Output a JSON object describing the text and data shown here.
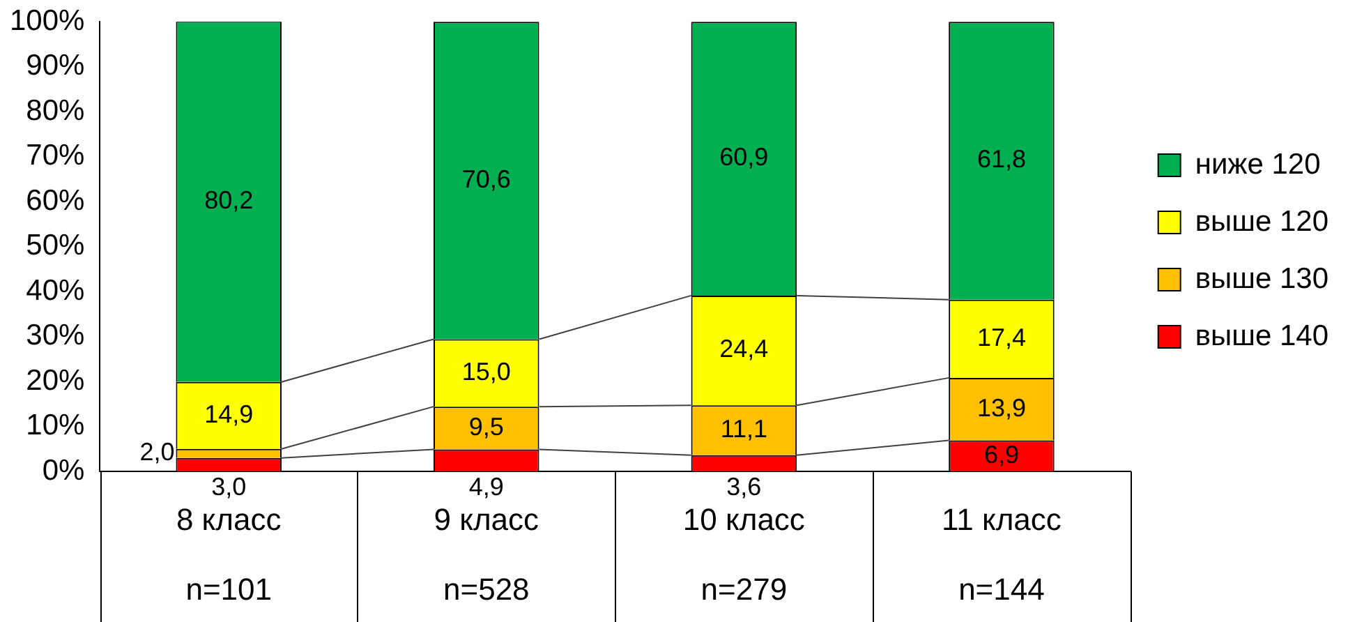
{
  "chart_data": {
    "type": "bar",
    "stacked": true,
    "categories": [
      "8 класс\nn=101",
      "9 класс\nn=528",
      "10 класс\nn=279",
      "11 класс\nn=144"
    ],
    "series": [
      {
        "name": "выше 140",
        "color": "#ff0000",
        "values": [
          3.0,
          4.9,
          3.6,
          6.9
        ],
        "value_labels": [
          "3,0",
          "4,9",
          "3,6",
          "6,9"
        ]
      },
      {
        "name": "выше 130",
        "color": "#ffc000",
        "values": [
          2.0,
          9.5,
          11.1,
          13.9
        ],
        "value_labels": [
          "2,0",
          "9,5",
          "11,1",
          "13,9"
        ]
      },
      {
        "name": "выше 120",
        "color": "#ffff00",
        "values": [
          14.9,
          15.0,
          24.4,
          17.4
        ],
        "value_labels": [
          "14,9",
          "15,0",
          "24,4",
          "17,4"
        ]
      },
      {
        "name": "ниже 120",
        "color": "#00b050",
        "values": [
          80.2,
          70.6,
          60.9,
          61.8
        ],
        "value_labels": [
          "80,2",
          "70,6",
          "60,9",
          "61,8"
        ]
      }
    ],
    "ylim": [
      0,
      100
    ],
    "yticks": [
      {
        "value": 0,
        "label": "0%"
      },
      {
        "value": 10,
        "label": "10%"
      },
      {
        "value": 20,
        "label": "20%"
      },
      {
        "value": 30,
        "label": "30%"
      },
      {
        "value": 40,
        "label": "40%"
      },
      {
        "value": 50,
        "label": "50%"
      },
      {
        "value": 60,
        "label": "60%"
      },
      {
        "value": 70,
        "label": "70%"
      },
      {
        "value": 80,
        "label": "80%"
      },
      {
        "value": 90,
        "label": "90%"
      },
      {
        "value": 100,
        "label": "100%"
      }
    ],
    "grid": false,
    "legend": "right"
  }
}
